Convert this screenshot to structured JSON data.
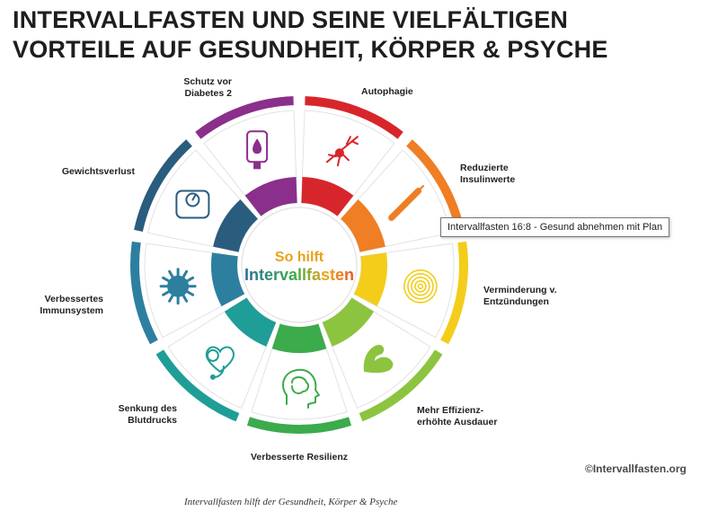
{
  "title_lines": [
    "INTERVALLFASTEN UND SEINE VIELFÄLTIGEN",
    "VORTEILE AUF GESUNDHEIT, KÖRPER & PSYCHE"
  ],
  "center": {
    "line1": "So hilft",
    "line2": "Intervallfasten"
  },
  "segments": [
    {
      "label_lines": [
        "Autophagie"
      ],
      "icon": "neuron-icon",
      "color": "#d7262b"
    },
    {
      "label_lines": [
        "Reduzierte",
        "Insulinwerte"
      ],
      "icon": "syringe-icon",
      "color": "#ef7e24"
    },
    {
      "label_lines": [
        "Verminderung v.",
        "Entzündungen"
      ],
      "icon": "ripple-icon",
      "color": "#f3cd1a"
    },
    {
      "label_lines": [
        "Mehr Effizienz-",
        "erhöhte Ausdauer"
      ],
      "icon": "muscle-arm-icon",
      "color": "#8cc43f"
    },
    {
      "label_lines": [
        "Verbesserte Resilienz"
      ],
      "icon": "brain-head-icon",
      "color": "#3bab4b"
    },
    {
      "label_lines": [
        "Senkung des",
        "Blutdrucks"
      ],
      "icon": "blood-pressure-icon",
      "color": "#1f9d97"
    },
    {
      "label_lines": [
        "Verbessertes",
        "Immunsystem"
      ],
      "icon": "virus-icon",
      "color": "#2d7fa0"
    },
    {
      "label_lines": [
        "Gewichtsverlust"
      ],
      "icon": "scale-icon",
      "color": "#2a5c7e"
    },
    {
      "label_lines": [
        "Schutz vor",
        "Diabetes 2"
      ],
      "icon": "glucose-meter-icon",
      "color": "#8a2f8c"
    }
  ],
  "tooltip": "Intervallfasten 16:8 - Gesund abnehmen mit Plan",
  "copyright": "©Intervallfasten.org",
  "caption": "Intervallfasten hilft der Gesundheit, Körper & Psyche"
}
